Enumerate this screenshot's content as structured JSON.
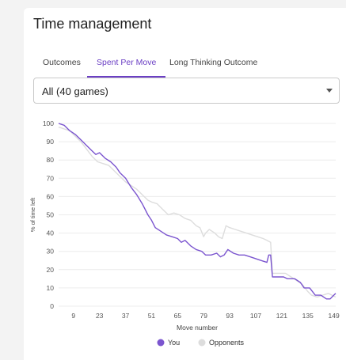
{
  "card": {
    "title": "Time management",
    "tabs": [
      {
        "label": "Outcomes",
        "active": false
      },
      {
        "label": "Spent Per Move",
        "active": true
      },
      {
        "label": "Long Thinking Outcome",
        "active": false
      }
    ],
    "filter": {
      "selected": "All (40 games)"
    }
  },
  "colors": {
    "you": "#7b55cf",
    "opponents": "#dddddd",
    "accent": "#6b3fc4",
    "grid": "#ececec"
  },
  "chart_data": {
    "type": "line",
    "title": "",
    "xlabel": "Move number",
    "ylabel": "% of time left",
    "xlim": [
      1,
      150
    ],
    "ylim": [
      0,
      100
    ],
    "x_ticks": [
      9,
      23,
      37,
      51,
      65,
      79,
      93,
      107,
      121,
      135,
      149
    ],
    "y_ticks": [
      0,
      10,
      20,
      30,
      40,
      50,
      60,
      70,
      80,
      90,
      100
    ],
    "grid": true,
    "legend": "bottom-center",
    "series": [
      {
        "name": "You",
        "color": "#7b55cf",
        "points": [
          [
            1,
            100
          ],
          [
            4,
            99
          ],
          [
            7,
            96
          ],
          [
            10,
            94
          ],
          [
            13,
            91
          ],
          [
            16,
            88
          ],
          [
            19,
            85
          ],
          [
            21,
            83
          ],
          [
            23,
            84
          ],
          [
            26,
            81
          ],
          [
            29,
            79
          ],
          [
            32,
            76
          ],
          [
            34,
            73
          ],
          [
            37,
            70
          ],
          [
            40,
            65
          ],
          [
            43,
            61
          ],
          [
            46,
            56
          ],
          [
            49,
            50
          ],
          [
            51,
            47
          ],
          [
            53,
            43
          ],
          [
            56,
            41
          ],
          [
            59,
            39
          ],
          [
            62,
            38
          ],
          [
            65,
            37
          ],
          [
            67,
            35
          ],
          [
            69,
            36
          ],
          [
            72,
            33
          ],
          [
            75,
            31
          ],
          [
            78,
            30
          ],
          [
            80,
            28
          ],
          [
            83,
            28
          ],
          [
            86,
            29
          ],
          [
            88,
            27
          ],
          [
            90,
            28
          ],
          [
            92,
            31
          ],
          [
            95,
            29
          ],
          [
            98,
            28
          ],
          [
            101,
            28
          ],
          [
            104,
            27
          ],
          [
            107,
            26
          ],
          [
            110,
            25
          ],
          [
            113,
            24
          ],
          [
            114,
            28
          ],
          [
            115,
            28
          ],
          [
            116,
            16
          ],
          [
            119,
            16
          ],
          [
            122,
            16
          ],
          [
            124,
            15
          ],
          [
            128,
            15
          ],
          [
            131,
            13
          ],
          [
            133,
            10
          ],
          [
            136,
            10
          ],
          [
            139,
            6
          ],
          [
            142,
            6
          ],
          [
            145,
            4
          ],
          [
            147,
            4
          ],
          [
            148,
            5
          ],
          [
            150,
            7
          ]
        ]
      },
      {
        "name": "Opponents",
        "color": "#dddddd",
        "points": [
          [
            1,
            98
          ],
          [
            4,
            97
          ],
          [
            7,
            96
          ],
          [
            10,
            93
          ],
          [
            13,
            90
          ],
          [
            16,
            86
          ],
          [
            19,
            82
          ],
          [
            22,
            79
          ],
          [
            25,
            78
          ],
          [
            28,
            77
          ],
          [
            31,
            74
          ],
          [
            34,
            71
          ],
          [
            37,
            68
          ],
          [
            40,
            66
          ],
          [
            43,
            64
          ],
          [
            46,
            61
          ],
          [
            49,
            58
          ],
          [
            51,
            57
          ],
          [
            54,
            56
          ],
          [
            57,
            53
          ],
          [
            60,
            50
          ],
          [
            63,
            51
          ],
          [
            66,
            50
          ],
          [
            69,
            48
          ],
          [
            72,
            47
          ],
          [
            75,
            44
          ],
          [
            77,
            43
          ],
          [
            79,
            38
          ],
          [
            80,
            40
          ],
          [
            82,
            42
          ],
          [
            85,
            40
          ],
          [
            87,
            38
          ],
          [
            89,
            37
          ],
          [
            91,
            44
          ],
          [
            93,
            43
          ],
          [
            96,
            42
          ],
          [
            99,
            41
          ],
          [
            102,
            40
          ],
          [
            105,
            39
          ],
          [
            108,
            38
          ],
          [
            111,
            37
          ],
          [
            113,
            36
          ],
          [
            115,
            35
          ],
          [
            116,
            18
          ],
          [
            118,
            18
          ],
          [
            120,
            18
          ],
          [
            123,
            18
          ],
          [
            126,
            16
          ],
          [
            129,
            14
          ],
          [
            132,
            12
          ],
          [
            135,
            8
          ],
          [
            137,
            6
          ],
          [
            140,
            5
          ],
          [
            143,
            6
          ],
          [
            146,
            7
          ],
          [
            148,
            6
          ],
          [
            150,
            5
          ]
        ]
      }
    ]
  }
}
